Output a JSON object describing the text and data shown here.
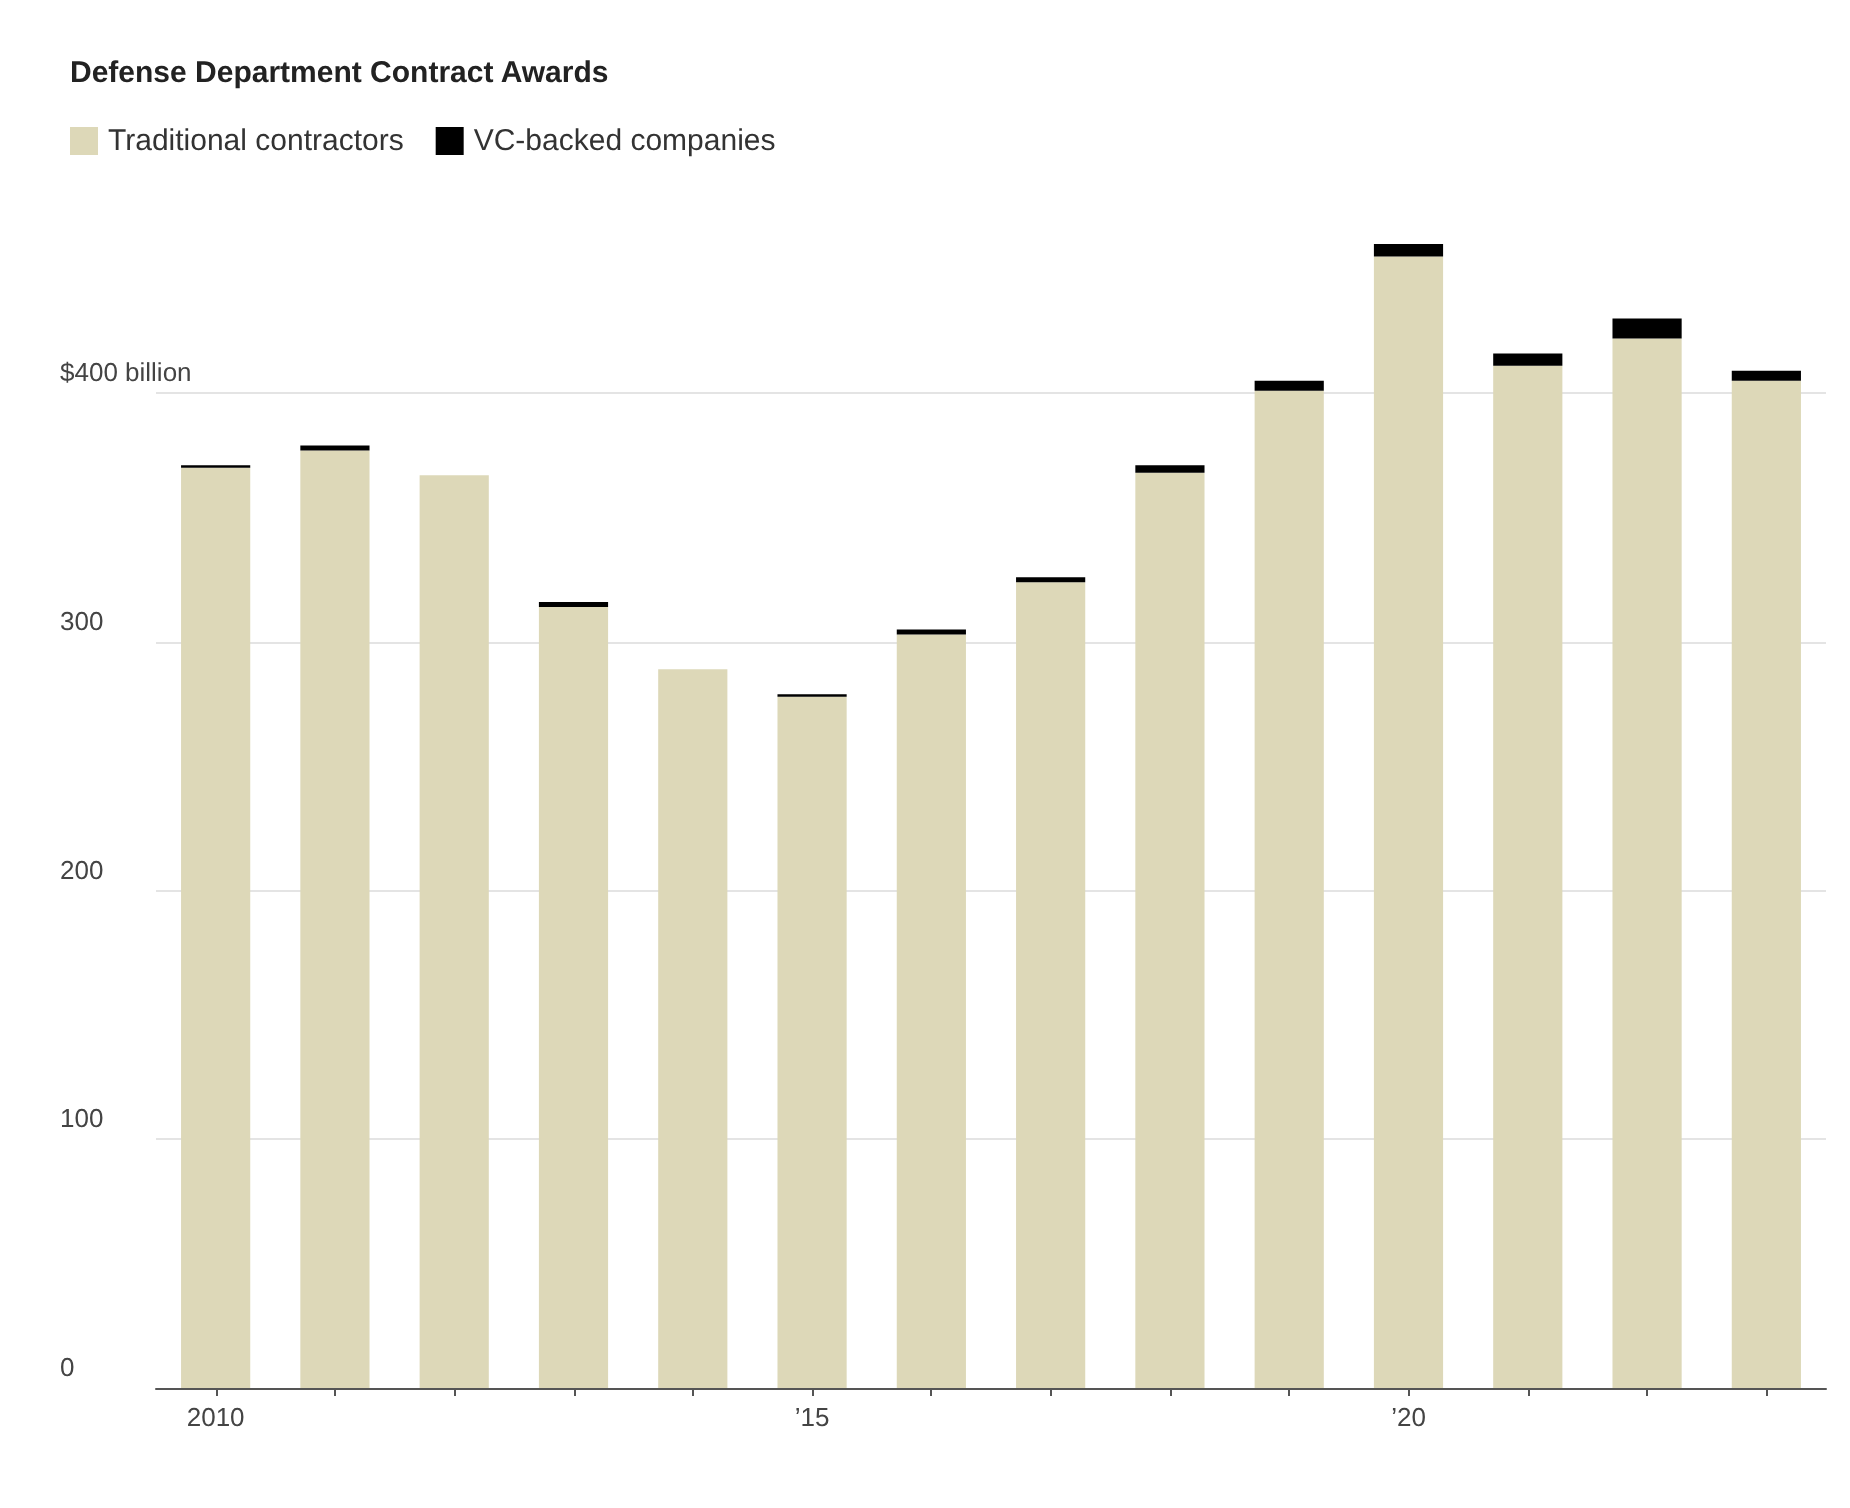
{
  "chart_data": {
    "type": "bar",
    "title": "Defense Department Contract Awards",
    "categories": [
      "2010",
      null,
      null,
      null,
      null,
      "’15",
      null,
      null,
      null,
      null,
      "’20",
      null,
      null,
      null
    ],
    "series": [
      {
        "name": "Traditional contractors",
        "color": "#ddd8b8",
        "values": [
          370,
          377,
          367,
          314,
          289,
          278,
          303,
          324,
          368,
          401,
          455,
          411,
          422,
          405
        ]
      },
      {
        "name": "VC-backed companies",
        "color": "#000000",
        "values": [
          1,
          2,
          0,
          2,
          0,
          1,
          2,
          2,
          3,
          4,
          5,
          5,
          8,
          4
        ]
      }
    ],
    "stacked": true,
    "ylim": [
      0,
      460
    ],
    "yticks": [
      0,
      100,
      200,
      300,
      {
        "value": 400,
        "label": "$400 billion"
      }
    ],
    "grid": "y",
    "legend": "top left"
  }
}
